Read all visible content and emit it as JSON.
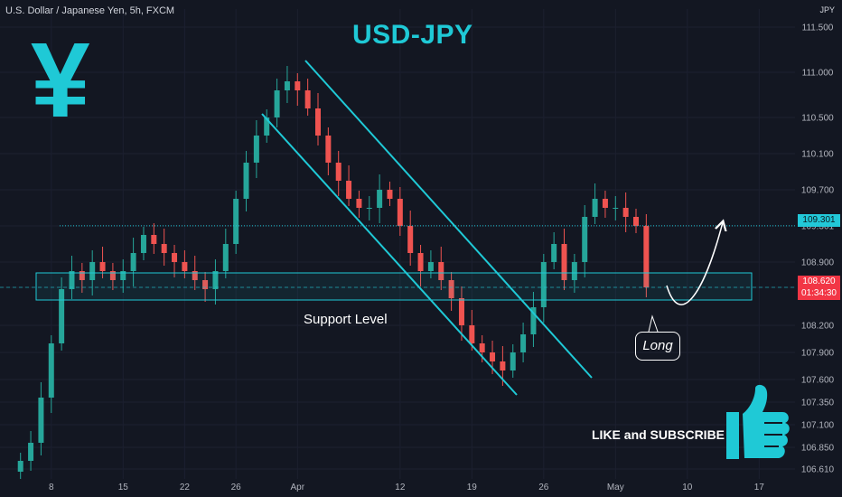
{
  "header": {
    "symbol_title": "U.S. Dollar / Japanese Yen, 5h, FXCM",
    "currency": "JPY"
  },
  "title": "USD-JPY",
  "annotations": {
    "support_label": "Support Level",
    "long_label": "Long",
    "like_label": "LIKE and SUBSCRIBE",
    "yen_symbol": "¥"
  },
  "price_tags": {
    "resistance": "109.301",
    "current": "108.620",
    "countdown": "01:34:30"
  },
  "colors": {
    "accent": "#1fc9d6",
    "up": "#26a69a",
    "down": "#ef5350",
    "background": "#131722"
  },
  "chart_data": {
    "type": "candlestick",
    "symbol": "U.S. Dollar / Japanese Yen",
    "interval": "5h",
    "source": "FXCM",
    "ylim": [
      106.5,
      111.7
    ],
    "y_ticks": [
      111.5,
      111.0,
      110.5,
      110.1,
      109.7,
      109.3,
      108.9,
      108.62,
      108.2,
      107.9,
      107.6,
      107.35,
      107.1,
      106.85,
      106.61
    ],
    "y_tick_labels": [
      "111.500",
      "111.000",
      "110.500",
      "110.100",
      "109.700",
      "109.301",
      "108.900",
      "108.620",
      "108.200",
      "107.900",
      "107.600",
      "107.350",
      "107.100",
      "106.850",
      "106.610"
    ],
    "x_tick_labels": [
      "8",
      "15",
      "22",
      "26",
      "Apr",
      "12",
      "19",
      "26",
      "May",
      "10",
      "17"
    ],
    "x_tick_positions": [
      3,
      10,
      16,
      21,
      27,
      37,
      44,
      51,
      58,
      65,
      72
    ],
    "x_range": [
      -2,
      75.5
    ],
    "resistance_level": 109.301,
    "current_price": 108.62,
    "support_zone": [
      108.48,
      108.78
    ],
    "closes": [
      106.7,
      106.9,
      107.4,
      108.0,
      108.6,
      108.8,
      108.7,
      108.9,
      108.8,
      108.7,
      108.8,
      109.0,
      109.2,
      109.1,
      109.0,
      108.9,
      108.8,
      108.7,
      108.6,
      108.8,
      109.1,
      109.6,
      110.0,
      110.3,
      110.5,
      110.8,
      110.9,
      110.8,
      110.6,
      110.3,
      110.0,
      109.8,
      109.6,
      109.5,
      109.5,
      109.7,
      109.6,
      109.3,
      109.0,
      108.8,
      108.9,
      108.7,
      108.5,
      108.2,
      108.0,
      107.9,
      107.8,
      107.7,
      107.9,
      108.1,
      108.4,
      108.9,
      109.1,
      108.7,
      108.9,
      109.4,
      109.6,
      109.5,
      109.5,
      109.4,
      109.3,
      108.62
    ]
  }
}
